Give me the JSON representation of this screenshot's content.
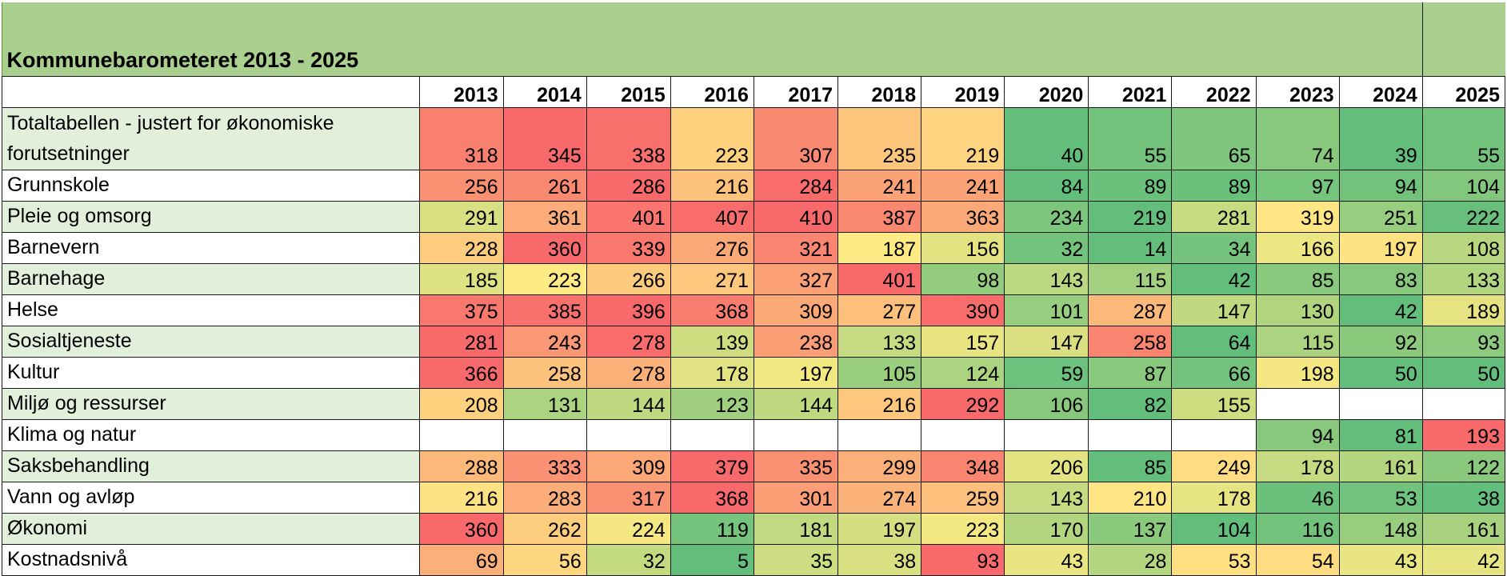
{
  "title": "Kommunebarometeret 2013 - 2025",
  "years": [
    "2013",
    "2014",
    "2015",
    "2016",
    "2017",
    "2018",
    "2019",
    "2020",
    "2021",
    "2022",
    "2023",
    "2024",
    "2025"
  ],
  "rows": [
    {
      "label": "Totaltabellen - justert for økonomiske forutsetninger",
      "values": [
        318,
        345,
        338,
        223,
        307,
        235,
        219,
        40,
        55,
        65,
        74,
        39,
        55
      ]
    },
    {
      "label": "Grunnskole",
      "values": [
        256,
        261,
        286,
        216,
        284,
        241,
        241,
        84,
        89,
        89,
        97,
        94,
        104
      ]
    },
    {
      "label": "Pleie og omsorg",
      "values": [
        291,
        361,
        401,
        407,
        410,
        387,
        363,
        234,
        219,
        281,
        319,
        251,
        222
      ]
    },
    {
      "label": "Barnevern",
      "values": [
        228,
        360,
        339,
        276,
        321,
        187,
        156,
        32,
        14,
        34,
        166,
        197,
        108
      ]
    },
    {
      "label": "Barnehage",
      "values": [
        185,
        223,
        266,
        271,
        327,
        401,
        98,
        143,
        115,
        42,
        85,
        83,
        133
      ]
    },
    {
      "label": "Helse",
      "values": [
        375,
        385,
        396,
        368,
        309,
        277,
        390,
        101,
        287,
        147,
        130,
        42,
        189
      ]
    },
    {
      "label": "Sosialtjeneste",
      "values": [
        281,
        243,
        278,
        139,
        238,
        133,
        157,
        147,
        258,
        64,
        115,
        92,
        93
      ]
    },
    {
      "label": "Kultur",
      "values": [
        366,
        258,
        278,
        178,
        197,
        105,
        124,
        59,
        87,
        66,
        198,
        50,
        50
      ]
    },
    {
      "label": "Miljø og ressurser",
      "values": [
        208,
        131,
        144,
        123,
        144,
        216,
        292,
        106,
        82,
        155,
        null,
        null,
        null
      ]
    },
    {
      "label": "Klima og natur",
      "values": [
        null,
        null,
        null,
        null,
        null,
        null,
        null,
        null,
        null,
        null,
        94,
        81,
        193
      ]
    },
    {
      "label": "Saksbehandling",
      "values": [
        288,
        333,
        309,
        379,
        335,
        299,
        348,
        206,
        85,
        249,
        178,
        161,
        122
      ]
    },
    {
      "label": "Vann og avløp",
      "values": [
        216,
        283,
        317,
        368,
        301,
        274,
        259,
        143,
        210,
        178,
        46,
        53,
        38
      ]
    },
    {
      "label": "Økonomi",
      "values": [
        360,
        262,
        224,
        119,
        181,
        197,
        223,
        170,
        137,
        104,
        116,
        148,
        161
      ]
    },
    {
      "label": "Kostnadsnivå",
      "values": [
        69,
        56,
        32,
        5,
        35,
        38,
        93,
        43,
        28,
        53,
        54,
        43,
        42
      ]
    }
  ],
  "colors": {
    "title_bg": "#a9d08e",
    "label_band": "#e2efda",
    "scale_low": "#63be7b",
    "scale_mid": "#ffeb84",
    "scale_high": "#f8696b"
  }
}
